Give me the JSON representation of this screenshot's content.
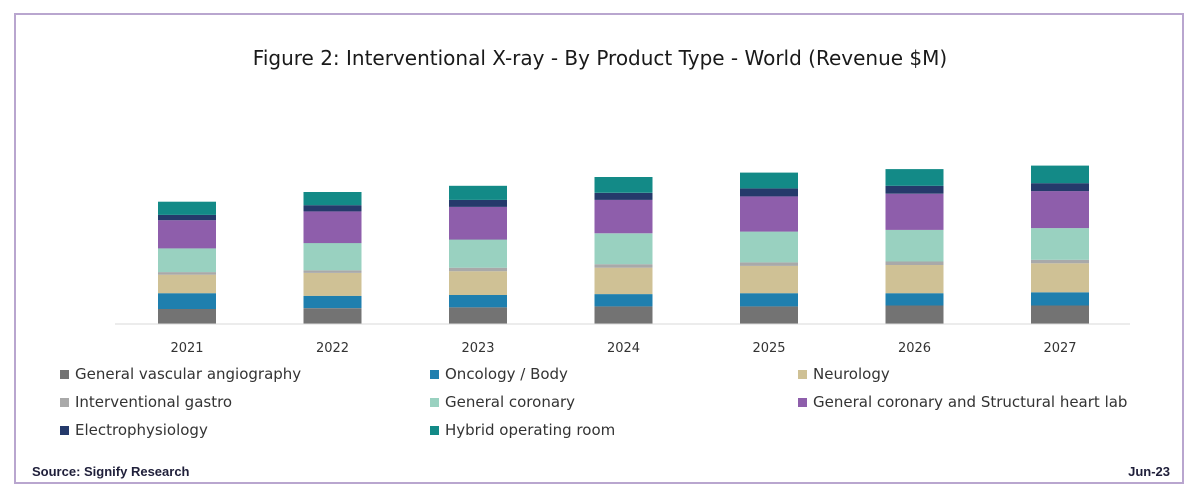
{
  "chart_data": {
    "type": "bar",
    "stacked": true,
    "title": "Figure 2: Interventional X-ray - By Product Type - World (Revenue $M)",
    "categories": [
      "2021",
      "2022",
      "2023",
      "2024",
      "2025",
      "2026",
      "2027"
    ],
    "series": [
      {
        "name": "General vascular angiography",
        "color": "#737373",
        "values": [
          17,
          18,
          19,
          20,
          20,
          21,
          21
        ]
      },
      {
        "name": "Oncology / Body",
        "color": "#1f7fae",
        "values": [
          18,
          14,
          14,
          14,
          15,
          14,
          15
        ]
      },
      {
        "name": "Neurology",
        "color": "#cfc195",
        "values": [
          21,
          26,
          27,
          30,
          31,
          32,
          33
        ]
      },
      {
        "name": "Interventional gastro",
        "color": "#a9a9a9",
        "values": [
          3,
          3,
          4,
          4,
          4,
          4,
          4
        ]
      },
      {
        "name": "General coronary",
        "color": "#99d1c0",
        "values": [
          27,
          31,
          32,
          35,
          35,
          36,
          36
        ]
      },
      {
        "name": "General coronary and Structural heart lab",
        "color": "#8e5eab",
        "values": [
          32,
          36,
          37,
          38,
          40,
          41,
          42
        ]
      },
      {
        "name": "Electrophysiology",
        "color": "#253a6b",
        "values": [
          6,
          7,
          8,
          8,
          9,
          9,
          9
        ]
      },
      {
        "name": "Hybrid operating room",
        "color": "#138a87",
        "values": [
          15,
          15,
          16,
          18,
          18,
          19,
          20
        ]
      }
    ],
    "ylim": [
      0,
      200
    ],
    "grid": false,
    "legend_position": "bottom",
    "source": "Source: Signify Research",
    "date": "Jun-23"
  }
}
